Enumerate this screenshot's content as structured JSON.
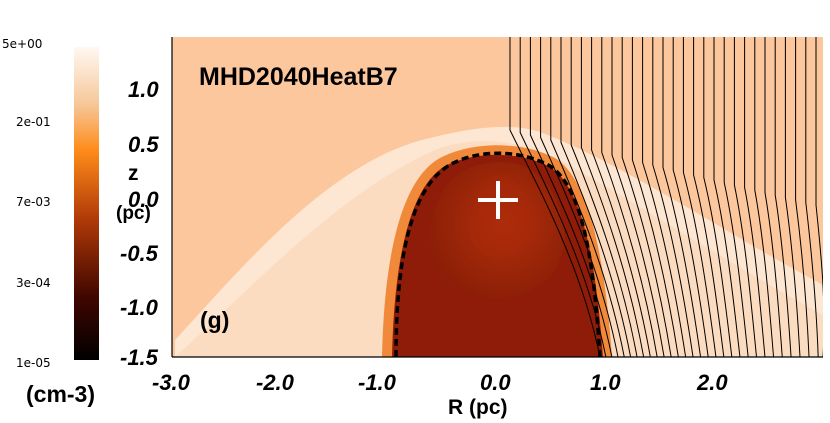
{
  "colorbar": {
    "ticks": [
      "5e+00",
      "2e-01",
      "7e-03",
      "3e-04",
      "1e-05"
    ],
    "unit": "(cm-3)",
    "colors": [
      "#fff8f2",
      "#f6c89a",
      "#ff8c1a",
      "#b03a08",
      "#400600",
      "#000000"
    ]
  },
  "axes": {
    "y_ticks": [
      "1.0",
      "0.5",
      "0.0",
      "-0.5",
      "-1.0",
      "-1.5"
    ],
    "x_ticks": [
      "-3.0",
      "-2.0",
      "-1.0",
      "0.0",
      "1.0",
      "2.0"
    ],
    "z_label": "z",
    "z_unit": "(pc)",
    "x_label": "R (pc)"
  },
  "plot": {
    "title": "MHD2040HeatB7",
    "panel_label": "(g)",
    "background_color": "#fcc79c",
    "shell_color": "#f08a3a",
    "cavity_color": "#8e1c08",
    "core_color": "#9c2a0e",
    "source_marker": "+"
  }
}
